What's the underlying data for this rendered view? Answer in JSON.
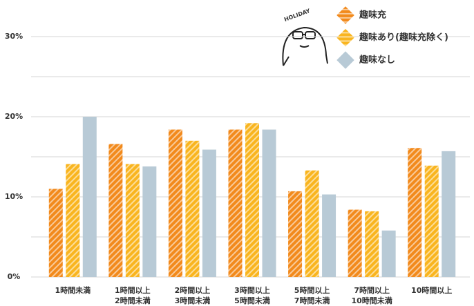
{
  "chart_data": {
    "type": "bar",
    "annotation": "HOLIDAY",
    "categories": [
      [
        "1時間未満"
      ],
      [
        "1時間以上",
        "2時間未満"
      ],
      [
        "2時間以上",
        "3時間未満"
      ],
      [
        "3時間以上",
        "5時間未満"
      ],
      [
        "5時間以上",
        "7時間未満"
      ],
      [
        "7時間以上",
        "10時間未満"
      ],
      [
        "10時間以上"
      ]
    ],
    "series": [
      {
        "name": "趣味充",
        "color": "#f28a1c",
        "striped": true,
        "values": [
          11.0,
          16.6,
          18.4,
          18.4,
          10.7,
          8.4,
          16.1
        ]
      },
      {
        "name": "趣味あり(趣味充除く)",
        "color": "#f9b51f",
        "striped": true,
        "values": [
          14.1,
          14.1,
          17.0,
          19.2,
          13.3,
          8.2,
          13.9
        ]
      },
      {
        "name": "趣味なし",
        "color": "#b8cad6",
        "striped": false,
        "values": [
          20.0,
          13.8,
          15.9,
          18.4,
          10.3,
          5.8,
          15.7
        ]
      }
    ],
    "ylim": [
      0,
      30
    ],
    "yticks": [
      {
        "value": 0,
        "label": "0%"
      },
      {
        "value": 10,
        "label": "10%"
      },
      {
        "value": 20,
        "label": "20%"
      },
      {
        "value": 30,
        "label": "30%"
      }
    ],
    "minor_yticks": [
      5,
      15,
      25
    ],
    "grid": true,
    "legend": "top-right"
  }
}
